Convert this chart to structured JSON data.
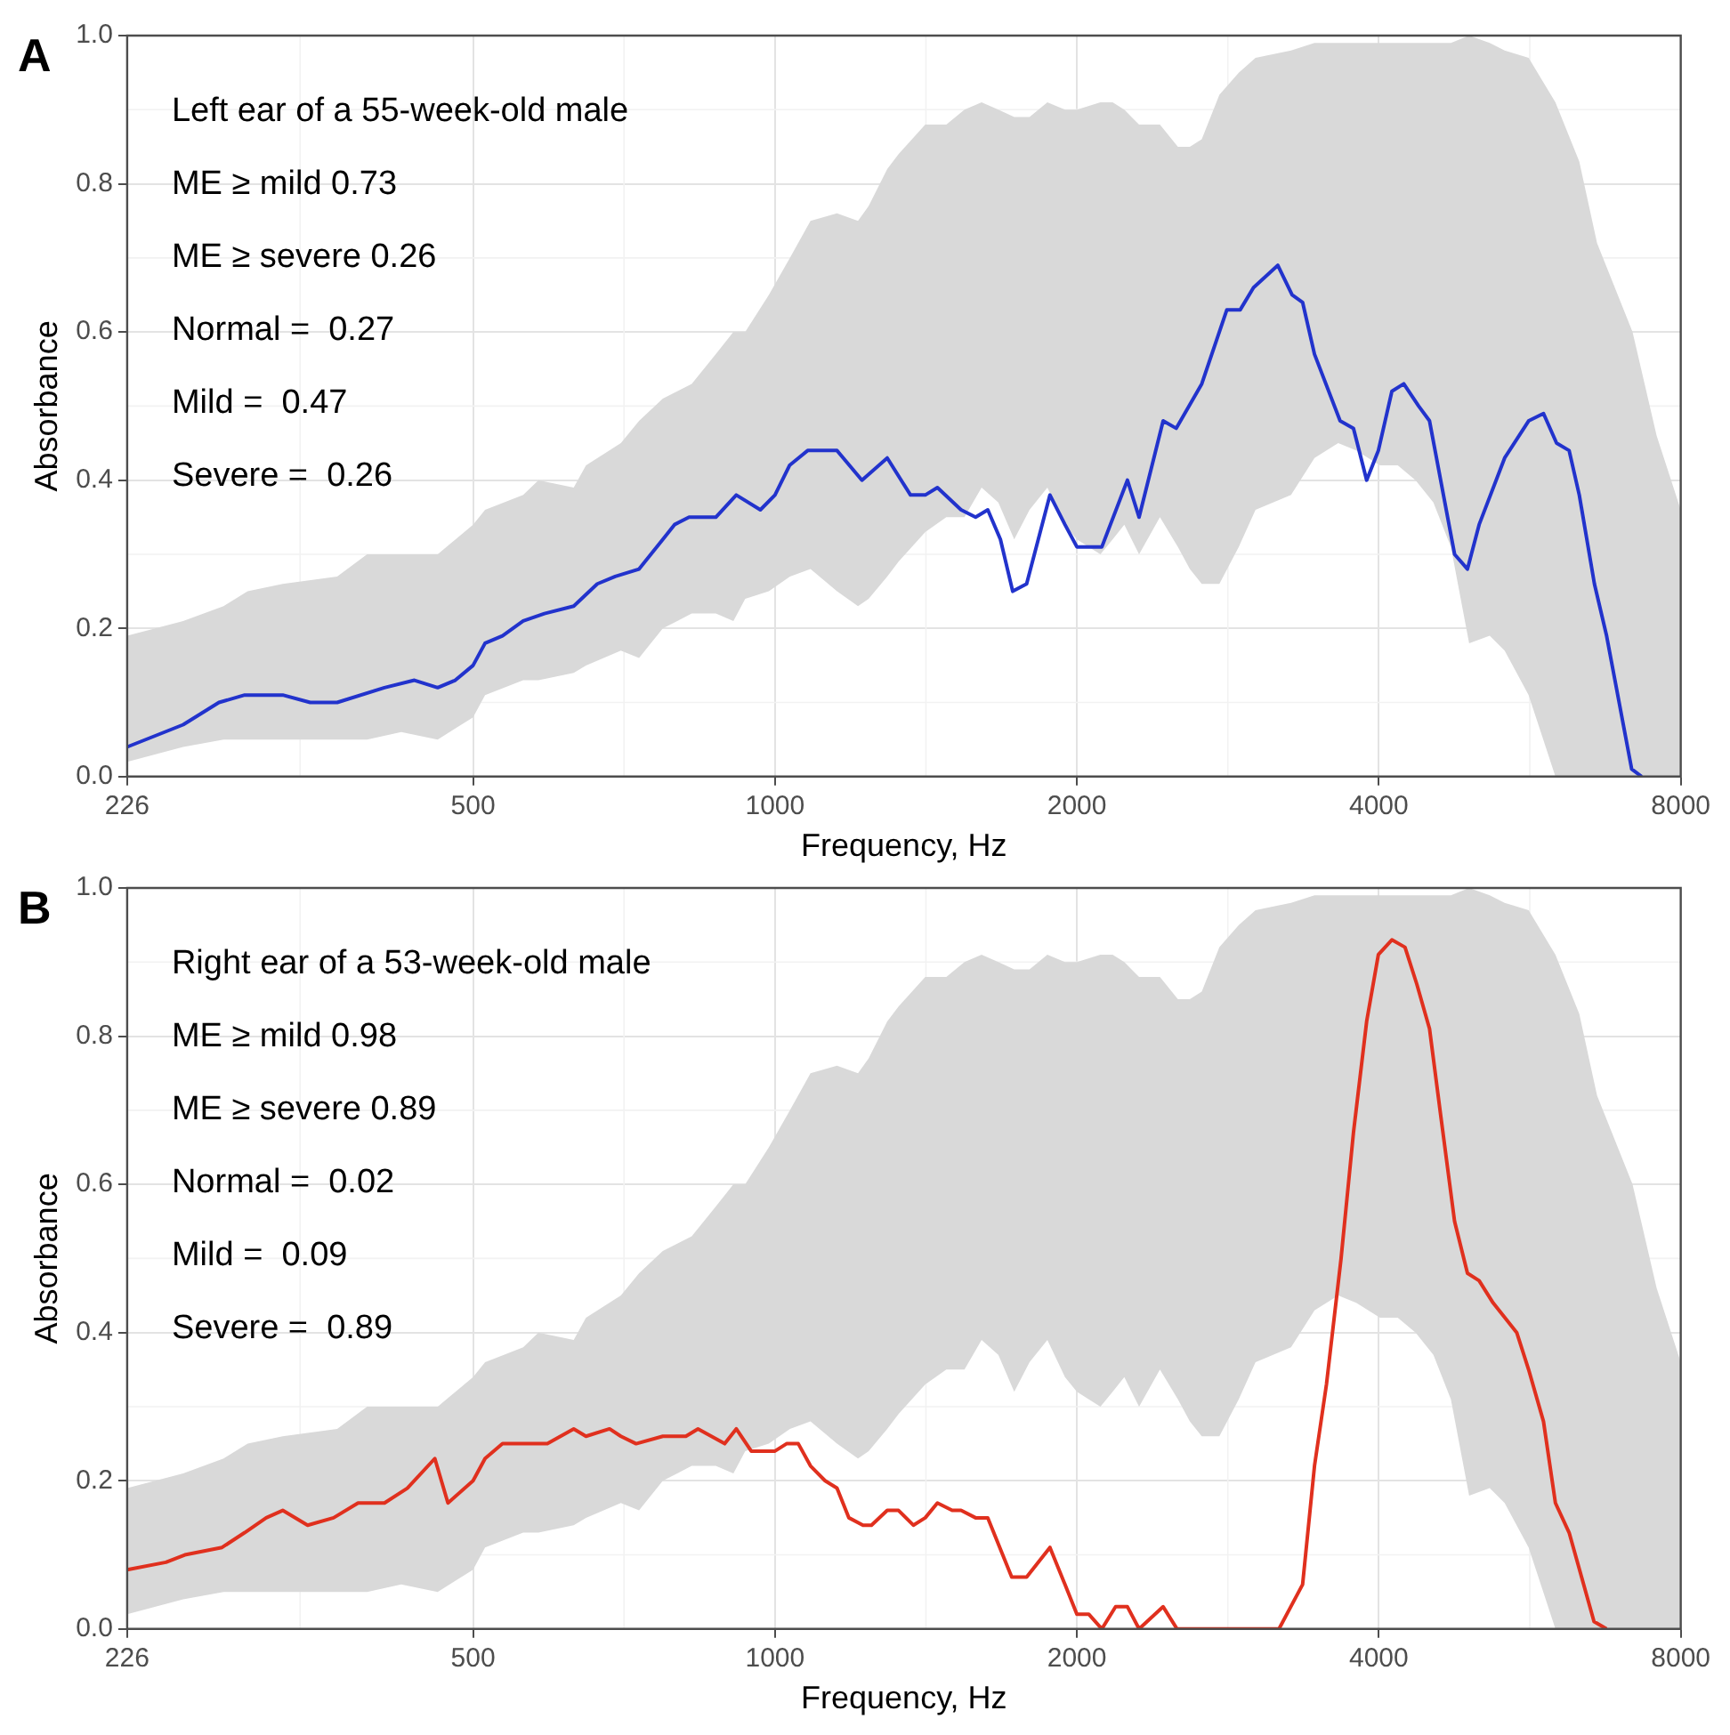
{
  "chart_data": [
    {
      "type": "line",
      "title": "A",
      "xlabel": "Frequency, Hz",
      "ylabel": "Absorbance",
      "log": "x",
      "grid": true,
      "xlim": [
        226,
        8000
      ],
      "xticks": [
        226,
        500,
        1000,
        2000,
        4000,
        8000
      ],
      "ylim": [
        0,
        1
      ],
      "yticks": [
        {
          "value": 0,
          "label": "0.0"
        },
        {
          "value": 0.2,
          "label": "0.2"
        },
        {
          "value": 0.4,
          "label": "0.4"
        },
        {
          "value": 0.6,
          "label": "0.6"
        },
        {
          "value": 0.8,
          "label": "0.8"
        },
        {
          "value": 1,
          "label": "1.0"
        }
      ],
      "annotations": [
        "Left ear of a 55-week-old male",
        "ME ≥ mild 0.73",
        "ME ≥ severe 0.26",
        "Normal =  0.27",
        "Mild =  0.47",
        "Severe =  0.26"
      ],
      "series": [
        {
          "type": "area",
          "color": "#d9d9d9",
          "x": [
            226,
            257,
            282,
            298,
            323,
            366,
            392,
            424,
            461,
            500,
            514,
            561,
            581,
            630,
            648,
            702,
            732,
            773,
            826,
            873,
            909,
            934,
            986,
            1035,
            1085,
            1153,
            1210,
            1240,
            1294,
            1328,
            1412,
            1482,
            1545,
            1607,
            1670,
            1732,
            1794,
            1869,
            1946,
            2000,
            2111,
            2171,
            2230,
            2307,
            2420,
            2522,
            2592,
            2664,
            2774,
            2900,
            3014,
            3270,
            3451,
            3644,
            3798,
            4011,
            4178,
            4352,
            4534,
            4720,
            4922,
            5160,
            5340,
            5642,
            6000,
            6338,
            6602,
            7162,
            7570,
            8000
          ],
          "values": [
            null,
            null,
            null,
            null,
            null,
            null,
            null,
            null,
            null,
            null,
            null,
            null,
            null,
            null,
            null,
            null,
            null,
            null,
            null,
            null,
            null,
            null,
            null,
            null,
            null,
            null,
            null,
            null,
            null,
            null,
            null,
            null,
            null,
            null,
            null,
            null,
            null,
            null,
            null,
            null,
            null,
            null,
            null,
            null,
            null,
            null,
            null,
            null,
            null,
            null,
            null,
            null,
            null,
            null,
            null,
            null,
            null,
            null,
            null,
            null,
            null,
            null,
            null,
            null,
            null,
            null,
            null,
            null,
            null,
            null
          ],
          "lower": [
            0.02,
            0.04,
            0.05,
            0.05,
            0.05,
            0.05,
            0.05,
            0.06,
            0.05,
            0.08,
            0.11,
            0.13,
            0.13,
            0.14,
            0.15,
            0.17,
            0.16,
            0.2,
            0.22,
            0.22,
            0.21,
            0.24,
            0.25,
            0.27,
            0.28,
            0.25,
            0.23,
            0.24,
            0.27,
            0.29,
            0.33,
            0.35,
            0.35,
            0.39,
            0.37,
            0.32,
            0.36,
            0.39,
            0.34,
            0.32,
            0.3,
            0.32,
            0.34,
            0.3,
            0.35,
            0.31,
            0.28,
            0.26,
            0.26,
            0.31,
            0.36,
            0.38,
            0.43,
            0.45,
            0.44,
            0.42,
            0.42,
            0.4,
            0.37,
            0.31,
            0.18,
            0.19,
            0.17,
            0.11,
            0,
            0,
            0,
            0,
            0,
            0
          ],
          "upper": [
            0.19,
            0.21,
            0.23,
            0.25,
            0.26,
            0.27,
            0.3,
            0.3,
            0.3,
            0.34,
            0.36,
            0.38,
            0.4,
            0.39,
            0.42,
            0.45,
            0.48,
            0.51,
            0.53,
            0.57,
            0.6,
            0.6,
            0.65,
            0.7,
            0.75,
            0.76,
            0.75,
            0.77,
            0.82,
            0.84,
            0.88,
            0.88,
            0.9,
            0.91,
            0.9,
            0.89,
            0.89,
            0.91,
            0.9,
            0.9,
            0.91,
            0.91,
            0.9,
            0.88,
            0.88,
            0.85,
            0.85,
            0.86,
            0.92,
            0.95,
            0.97,
            0.98,
            0.99,
            0.99,
            0.99,
            0.99,
            0.99,
            0.99,
            0.99,
            0.99,
            1.0,
            0.99,
            0.98,
            0.97,
            0.91,
            0.83,
            0.72,
            0.6,
            0.46,
            0.36
          ]
        },
        {
          "color": "#2233cc",
          "x": [
            226,
            257,
            279,
            296,
            323,
            344,
            366,
            408,
            437,
            461,
            480,
            500,
            514,
            535,
            561,
            589,
            630,
            665,
            693,
            732,
            773,
            794,
            821,
            850,
            873,
            915,
            967,
            1000,
            1034,
            1078,
            1100,
            1153,
            1221,
            1294,
            1365,
            1412,
            1452,
            1533,
            1585,
            1630,
            1678,
            1726,
            1782,
            1880,
            1946,
            2000,
            2055,
            2118,
            2246,
            2307,
            2438,
            2512,
            2664,
            2822,
            2910,
            3000,
            3172,
            3278,
            3358,
            3451,
            3660,
            3774,
            3890,
            3996,
            4122,
            4236,
            4383,
            4494,
            4760,
            4903,
            5036,
            5340,
            5642,
            5838,
            6016,
            6192,
            6338,
            6562,
            6748,
            7148,
            7314
          ],
          "values": [
            0.04,
            0.07,
            0.1,
            0.11,
            0.11,
            0.1,
            0.1,
            0.12,
            0.13,
            0.12,
            0.13,
            0.15,
            0.18,
            0.19,
            0.21,
            0.22,
            0.23,
            0.26,
            0.27,
            0.28,
            0.32,
            0.34,
            0.35,
            0.35,
            0.35,
            0.38,
            0.36,
            0.38,
            0.42,
            0.44,
            0.44,
            0.44,
            0.4,
            0.43,
            0.38,
            0.38,
            0.39,
            0.36,
            0.35,
            0.36,
            0.32,
            0.25,
            0.26,
            0.38,
            0.34,
            0.31,
            0.31,
            0.31,
            0.4,
            0.35,
            0.48,
            0.47,
            0.53,
            0.63,
            0.63,
            0.66,
            0.69,
            0.65,
            0.64,
            0.57,
            0.48,
            0.47,
            0.4,
            0.44,
            0.52,
            0.53,
            0.5,
            0.48,
            0.3,
            0.28,
            0.34,
            0.43,
            0.48,
            0.49,
            0.45,
            0.44,
            0.38,
            0.26,
            0.19,
            0.01,
            0
          ]
        }
      ]
    },
    {
      "type": "line",
      "title": "B",
      "xlabel": "Frequency, Hz",
      "ylabel": "Absorbance",
      "log": "x",
      "grid": true,
      "xlim": [
        226,
        8000
      ],
      "xticks": [
        226,
        500,
        1000,
        2000,
        4000,
        8000
      ],
      "ylim": [
        0,
        1
      ],
      "yticks": [
        {
          "value": 0,
          "label": "0.0"
        },
        {
          "value": 0.2,
          "label": "0.2"
        },
        {
          "value": 0.4,
          "label": "0.4"
        },
        {
          "value": 0.6,
          "label": "0.6"
        },
        {
          "value": 0.8,
          "label": "0.8"
        },
        {
          "value": 1,
          "label": "1.0"
        }
      ],
      "annotations": [
        "Right ear of a 53-week-old male",
        "ME ≥ mild 0.98",
        "ME ≥ severe 0.89",
        "Normal =  0.02",
        "Mild =  0.09",
        "Severe =  0.89"
      ],
      "series": [
        {
          "type": "area",
          "color": "#d9d9d9",
          "x": [
            226,
            257,
            282,
            298,
            323,
            366,
            392,
            424,
            461,
            500,
            514,
            561,
            581,
            630,
            648,
            702,
            732,
            773,
            826,
            873,
            909,
            934,
            986,
            1035,
            1085,
            1153,
            1210,
            1240,
            1294,
            1328,
            1412,
            1482,
            1545,
            1607,
            1670,
            1732,
            1794,
            1869,
            1946,
            2000,
            2111,
            2171,
            2230,
            2307,
            2420,
            2522,
            2592,
            2664,
            2774,
            2900,
            3014,
            3270,
            3451,
            3644,
            3798,
            4011,
            4178,
            4352,
            4534,
            4720,
            4922,
            5160,
            5340,
            5642,
            6000,
            6338,
            6602,
            7162,
            7570,
            8000
          ],
          "values": [
            null,
            null,
            null,
            null,
            null,
            null,
            null,
            null,
            null,
            null,
            null,
            null,
            null,
            null,
            null,
            null,
            null,
            null,
            null,
            null,
            null,
            null,
            null,
            null,
            null,
            null,
            null,
            null,
            null,
            null,
            null,
            null,
            null,
            null,
            null,
            null,
            null,
            null,
            null,
            null,
            null,
            null,
            null,
            null,
            null,
            null,
            null,
            null,
            null,
            null,
            null,
            null,
            null,
            null,
            null,
            null,
            null,
            null,
            null,
            null,
            null,
            null,
            null,
            null,
            null,
            null,
            null,
            null,
            null,
            null
          ],
          "lower": [
            0.02,
            0.04,
            0.05,
            0.05,
            0.05,
            0.05,
            0.05,
            0.06,
            0.05,
            0.08,
            0.11,
            0.13,
            0.13,
            0.14,
            0.15,
            0.17,
            0.16,
            0.2,
            0.22,
            0.22,
            0.21,
            0.24,
            0.25,
            0.27,
            0.28,
            0.25,
            0.23,
            0.24,
            0.27,
            0.29,
            0.33,
            0.35,
            0.35,
            0.39,
            0.37,
            0.32,
            0.36,
            0.39,
            0.34,
            0.32,
            0.3,
            0.32,
            0.34,
            0.3,
            0.35,
            0.31,
            0.28,
            0.26,
            0.26,
            0.31,
            0.36,
            0.38,
            0.43,
            0.45,
            0.44,
            0.42,
            0.42,
            0.4,
            0.37,
            0.31,
            0.18,
            0.19,
            0.17,
            0.11,
            0,
            0,
            0,
            0,
            0,
            0
          ],
          "upper": [
            0.19,
            0.21,
            0.23,
            0.25,
            0.26,
            0.27,
            0.3,
            0.3,
            0.3,
            0.34,
            0.36,
            0.38,
            0.4,
            0.39,
            0.42,
            0.45,
            0.48,
            0.51,
            0.53,
            0.57,
            0.6,
            0.6,
            0.65,
            0.7,
            0.75,
            0.76,
            0.75,
            0.77,
            0.82,
            0.84,
            0.88,
            0.88,
            0.9,
            0.91,
            0.9,
            0.89,
            0.89,
            0.91,
            0.9,
            0.9,
            0.91,
            0.91,
            0.9,
            0.88,
            0.88,
            0.85,
            0.85,
            0.86,
            0.92,
            0.95,
            0.97,
            0.98,
            0.99,
            0.99,
            0.99,
            0.99,
            0.99,
            0.99,
            0.99,
            0.99,
            1.0,
            0.99,
            0.98,
            0.97,
            0.91,
            0.83,
            0.72,
            0.6,
            0.46,
            0.36
          ]
        },
        {
          "color": "#e0301e",
          "x": [
            226,
            247,
            258,
            281,
            296,
            311,
            323,
            342,
            363,
            384,
            408,
            430,
            458,
            472,
            500,
            514,
            535,
            561,
            593,
            630,
            648,
            684,
            702,
            727,
            773,
            815,
            838,
            891,
            915,
            947,
            974,
            1000,
            1027,
            1055,
            1085,
            1122,
            1153,
            1185,
            1224,
            1248,
            1294,
            1328,
            1374,
            1412,
            1452,
            1502,
            1533,
            1585,
            1630,
            1722,
            1782,
            1880,
            1946,
            2000,
            2055,
            2118,
            2186,
            2246,
            2307,
            2438,
            2517,
            3181,
            3268,
            3358,
            3451,
            3547,
            3668,
            3774,
            3890,
            3996,
            4122,
            4248,
            4365,
            4494,
            4614,
            4760,
            4903,
            5036,
            5200,
            5490,
            5642,
            5838,
            6000,
            6192,
            6556,
            6748
          ],
          "values": [
            0.08,
            0.09,
            0.1,
            0.11,
            0.13,
            0.15,
            0.16,
            0.14,
            0.15,
            0.17,
            0.17,
            0.19,
            0.23,
            0.17,
            0.2,
            0.23,
            0.25,
            0.25,
            0.25,
            0.27,
            0.26,
            0.27,
            0.26,
            0.25,
            0.26,
            0.26,
            0.27,
            0.25,
            0.27,
            0.24,
            0.24,
            0.24,
            0.25,
            0.25,
            0.22,
            0.2,
            0.19,
            0.15,
            0.14,
            0.14,
            0.16,
            0.16,
            0.14,
            0.15,
            0.17,
            0.16,
            0.16,
            0.15,
            0.15,
            0.07,
            0.07,
            0.11,
            0.06,
            0.02,
            0.02,
            0,
            0.03,
            0.03,
            0,
            0.03,
            0,
            0,
            0.03,
            0.06,
            0.22,
            0.33,
            0.5,
            0.67,
            0.82,
            0.91,
            0.93,
            0.92,
            0.87,
            0.81,
            0.69,
            0.55,
            0.48,
            0.47,
            0.44,
            0.4,
            0.35,
            0.28,
            0.17,
            0.13,
            0.01,
            0
          ]
        }
      ]
    }
  ]
}
